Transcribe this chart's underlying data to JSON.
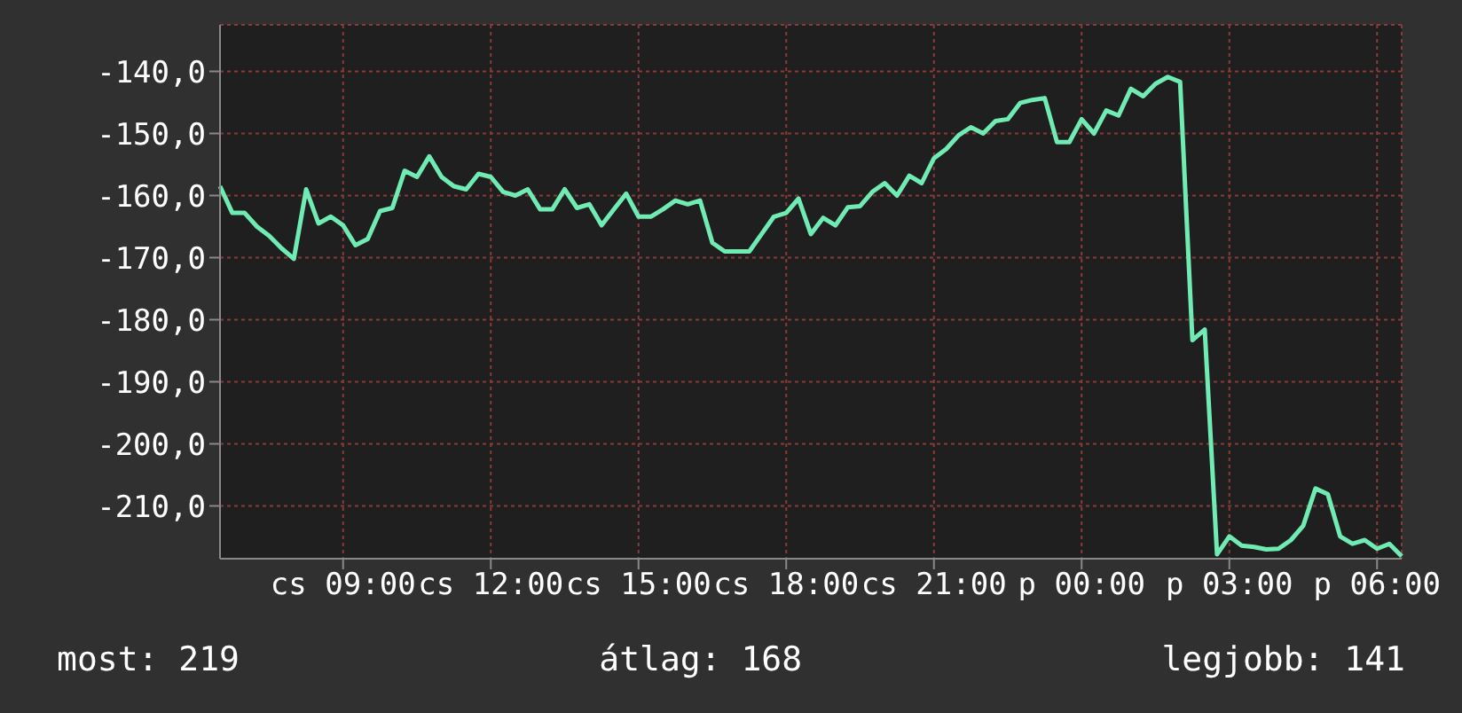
{
  "chart_data": {
    "type": "line",
    "ylim": [
      -218.5,
      -132.5
    ],
    "categories": [
      null,
      null,
      null,
      null,
      null,
      null,
      null,
      null,
      null,
      null,
      "cs 09:00",
      null,
      null,
      null,
      null,
      null,
      null,
      null,
      null,
      null,
      null,
      null,
      "cs 12:00",
      null,
      null,
      null,
      null,
      null,
      null,
      null,
      null,
      null,
      null,
      null,
      "cs 15:00",
      null,
      null,
      null,
      null,
      null,
      null,
      null,
      null,
      null,
      null,
      null,
      "cs 18:00",
      null,
      null,
      null,
      null,
      null,
      null,
      null,
      null,
      null,
      null,
      null,
      "cs 21:00",
      null,
      null,
      null,
      null,
      null,
      null,
      null,
      null,
      null,
      null,
      null,
      "p 00:00",
      null,
      null,
      null,
      null,
      null,
      null,
      null,
      null,
      null,
      null,
      null,
      "p 03:00",
      null,
      null,
      null,
      null,
      null,
      null,
      null,
      null,
      null,
      null,
      null,
      "p 06:00",
      null,
      null
    ],
    "yticks": [
      {
        "value": -140,
        "label": "-140,0"
      },
      {
        "value": -150,
        "label": "-150,0"
      },
      {
        "value": -160,
        "label": "-160,0"
      },
      {
        "value": -170,
        "label": "-170,0"
      },
      {
        "value": -180,
        "label": "-180,0"
      },
      {
        "value": -190,
        "label": "-190,0"
      },
      {
        "value": -200,
        "label": "-200,0"
      },
      {
        "value": -210,
        "label": "-210,0"
      }
    ],
    "grid": true,
    "legend": false,
    "marker": "none",
    "line_style": "solid",
    "annotations": [
      "most: 219",
      "átlag: 168",
      "legjobb: 141"
    ],
    "series": [
      {
        "color": "#70ebb4",
        "values": [
          -158.5,
          -162.8,
          -162.8,
          -165,
          -166.5,
          -168.5,
          -170.2,
          -159,
          -164.5,
          -163.4,
          -164.8,
          -168,
          -167,
          -162.5,
          -162,
          -156,
          -157,
          -153.7,
          -157,
          -158.5,
          -159,
          -156.5,
          -157,
          -159.4,
          -160,
          -159,
          -162.2,
          -162.2,
          -159,
          -162,
          -161.4,
          -164.8,
          -162.2,
          -159.7,
          -163.4,
          -163.4,
          -162.2,
          -160.8,
          -161.4,
          -160.8,
          -167.6,
          -169,
          -169,
          -169,
          -166.2,
          -163.4,
          -162.8,
          -160.5,
          -166.2,
          -163.6,
          -164.8,
          -161.9,
          -161.7,
          -159.4,
          -158,
          -160,
          -156.8,
          -158,
          -154,
          -152.5,
          -150.3,
          -149,
          -150,
          -148,
          -147.7,
          -145.1,
          -144.6,
          -144.3,
          -151.4,
          -151.4,
          -147.7,
          -150,
          -146.3,
          -147.1,
          -142.8,
          -144,
          -142,
          -140.9,
          -141.7,
          -183.3,
          -181.6,
          -217.8,
          -214.9,
          -216.4,
          -216.6,
          -217,
          -216.9,
          -215.5,
          -213.2,
          -207.2,
          -208.1,
          -214.9,
          -216.1,
          -215.5,
          -216.9,
          -216.1,
          -218.1
        ]
      }
    ]
  }
}
